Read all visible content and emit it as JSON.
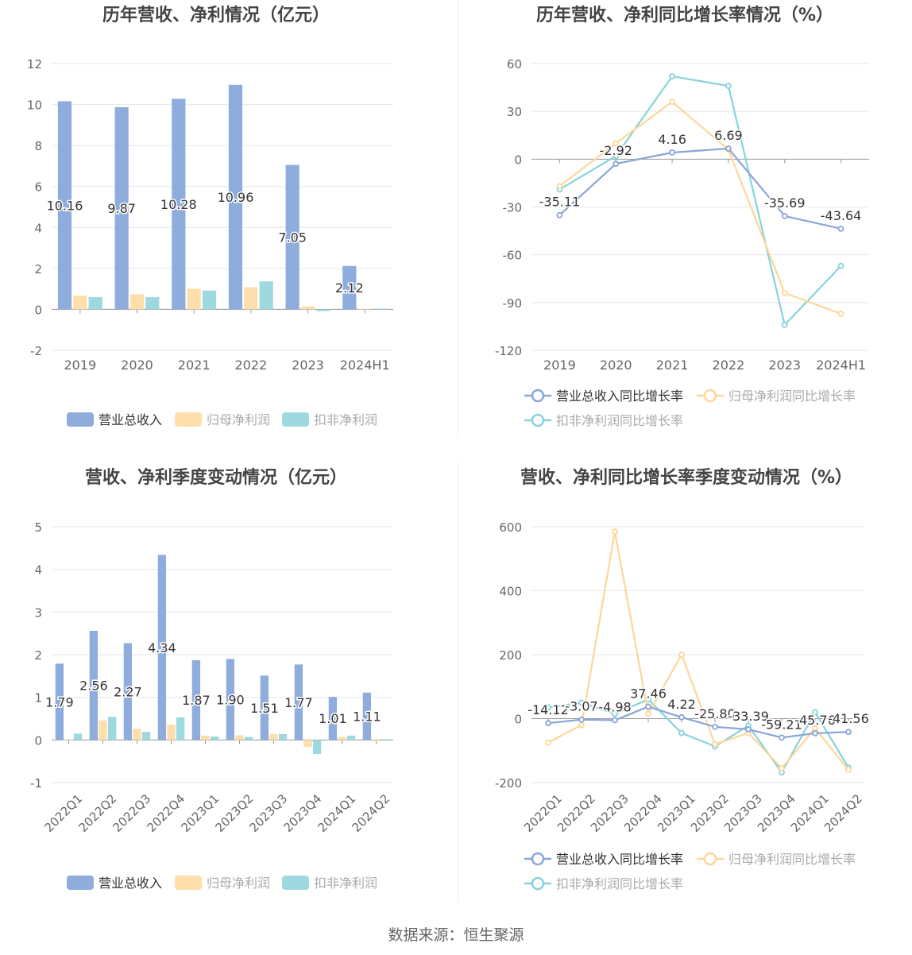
{
  "footer": {
    "source": "数据来源：恒生聚源"
  },
  "colors": {
    "revenue": "#8eacdc",
    "net_profit": "#fedeaa",
    "deducted_profit": "#9dd9df",
    "revenue_line": "#8aa6d8",
    "net_profit_line": "#fcd79a",
    "deducted_line": "#86d3dc",
    "grid": "#e6e6ee",
    "axis": "#999999",
    "tick": "#666666",
    "title": "#444444"
  },
  "legend_labels": [
    "营业总收入",
    "归母净利润",
    "扣非净利润"
  ],
  "legend_growth_labels": [
    "营业总收入同比增长率",
    "归母净利润同比增长率",
    "扣非净利润同比增长率"
  ],
  "chart_data": [
    {
      "id": "annual-amounts",
      "type": "bar",
      "title": "历年营收、净利情况（亿元）",
      "categories": [
        "2019",
        "2020",
        "2021",
        "2022",
        "2023",
        "2024H1"
      ],
      "ylim": [
        -2,
        12
      ],
      "yticks": [
        -2,
        0,
        2,
        4,
        6,
        8,
        10,
        12
      ],
      "grid": true,
      "legend_position": "bottom",
      "series": [
        {
          "name": "营业总收入",
          "values": [
            10.16,
            9.87,
            10.28,
            10.96,
            7.05,
            2.12
          ],
          "labels": [
            "10.16",
            "9.87",
            "10.28",
            "10.96",
            "7.05",
            "2.12"
          ]
        },
        {
          "name": "归母净利润",
          "values": [
            0.68,
            0.74,
            1.01,
            1.08,
            0.15,
            0.02
          ]
        },
        {
          "name": "扣非净利润",
          "values": [
            0.6,
            0.6,
            0.92,
            1.37,
            -0.08,
            0.04
          ]
        }
      ]
    },
    {
      "id": "annual-growth",
      "type": "line",
      "title": "历年营收、净利同比增长率情况（%）",
      "categories": [
        "2019",
        "2020",
        "2021",
        "2022",
        "2023",
        "2024H1"
      ],
      "ylim": [
        -120,
        60
      ],
      "yticks": [
        -120,
        -90,
        -60,
        -30,
        0,
        30,
        60
      ],
      "grid": true,
      "legend_position": "bottom",
      "series": [
        {
          "name": "营业总收入同比增长率",
          "values": [
            -35.11,
            -2.92,
            4.16,
            6.69,
            -35.69,
            -43.64
          ],
          "labels": [
            "-35.11",
            "-2.92",
            "4.16",
            "6.69",
            "-35.69",
            "-43.64"
          ]
        },
        {
          "name": "归母净利润同比增长率",
          "values": [
            -17,
            10,
            36,
            6,
            -84,
            -97
          ]
        },
        {
          "name": "扣非净利润同比增长率",
          "values": [
            -19,
            2,
            52,
            46,
            -104,
            -67
          ]
        }
      ]
    },
    {
      "id": "quarterly-amounts",
      "type": "bar",
      "title": "营收、净利季度变动情况（亿元）",
      "categories": [
        "2022Q1",
        "2022Q2",
        "2022Q3",
        "2022Q4",
        "2023Q1",
        "2023Q2",
        "2023Q3",
        "2023Q4",
        "2024Q1",
        "2024Q2"
      ],
      "ylim": [
        -1,
        5
      ],
      "yticks": [
        -1,
        0,
        1,
        2,
        3,
        4,
        5
      ],
      "grid": true,
      "legend_position": "bottom",
      "series": [
        {
          "name": "营业总收入",
          "values": [
            1.79,
            2.56,
            2.27,
            4.34,
            1.87,
            1.9,
            1.51,
            1.77,
            1.01,
            1.11
          ],
          "labels": [
            "1.79",
            "2.56",
            "2.27",
            "4.34",
            "1.87",
            "1.90",
            "1.51",
            "1.77",
            "1.01",
            "1.11"
          ]
        },
        {
          "name": "归母净利润",
          "values": [
            0.0,
            0.46,
            0.26,
            0.36,
            0.1,
            0.11,
            0.14,
            -0.16,
            0.07,
            -0.03
          ]
        },
        {
          "name": "扣非净利润",
          "values": [
            0.15,
            0.54,
            0.19,
            0.53,
            0.08,
            0.07,
            0.14,
            -0.33,
            0.1,
            0.02
          ]
        }
      ]
    },
    {
      "id": "quarterly-growth",
      "type": "line",
      "title": "营收、净利同比增长率季度变动情况（%）",
      "categories": [
        "2022Q1",
        "2022Q2",
        "2022Q3",
        "2022Q4",
        "2023Q1",
        "2023Q2",
        "2023Q3",
        "2023Q4",
        "2024Q1",
        "2024Q2"
      ],
      "ylim": [
        -200,
        600
      ],
      "yticks": [
        -200,
        0,
        200,
        400,
        600
      ],
      "grid": true,
      "legend_position": "bottom",
      "series": [
        {
          "name": "营业总收入同比增长率",
          "values": [
            -14.12,
            -3.07,
            -4.98,
            37.46,
            4.22,
            -25.8,
            -33.39,
            -59.21,
            -45.76,
            -41.56
          ],
          "labels": [
            "-14.12",
            "-3.07",
            "-4.98",
            "37.46",
            "4.22",
            "-25.80",
            "-33.39",
            "-59.21",
            "-45.76",
            "-41.56"
          ]
        },
        {
          "name": "归母净利润同比增长率",
          "values": [
            -75,
            -20,
            585,
            15,
            200,
            -80,
            -45,
            -155,
            -30,
            -160
          ]
        },
        {
          "name": "扣非净利润同比增长率",
          "values": [
            35,
            50,
            15,
            60,
            -45,
            -87,
            -22,
            -168,
            20,
            -153
          ]
        }
      ]
    }
  ]
}
